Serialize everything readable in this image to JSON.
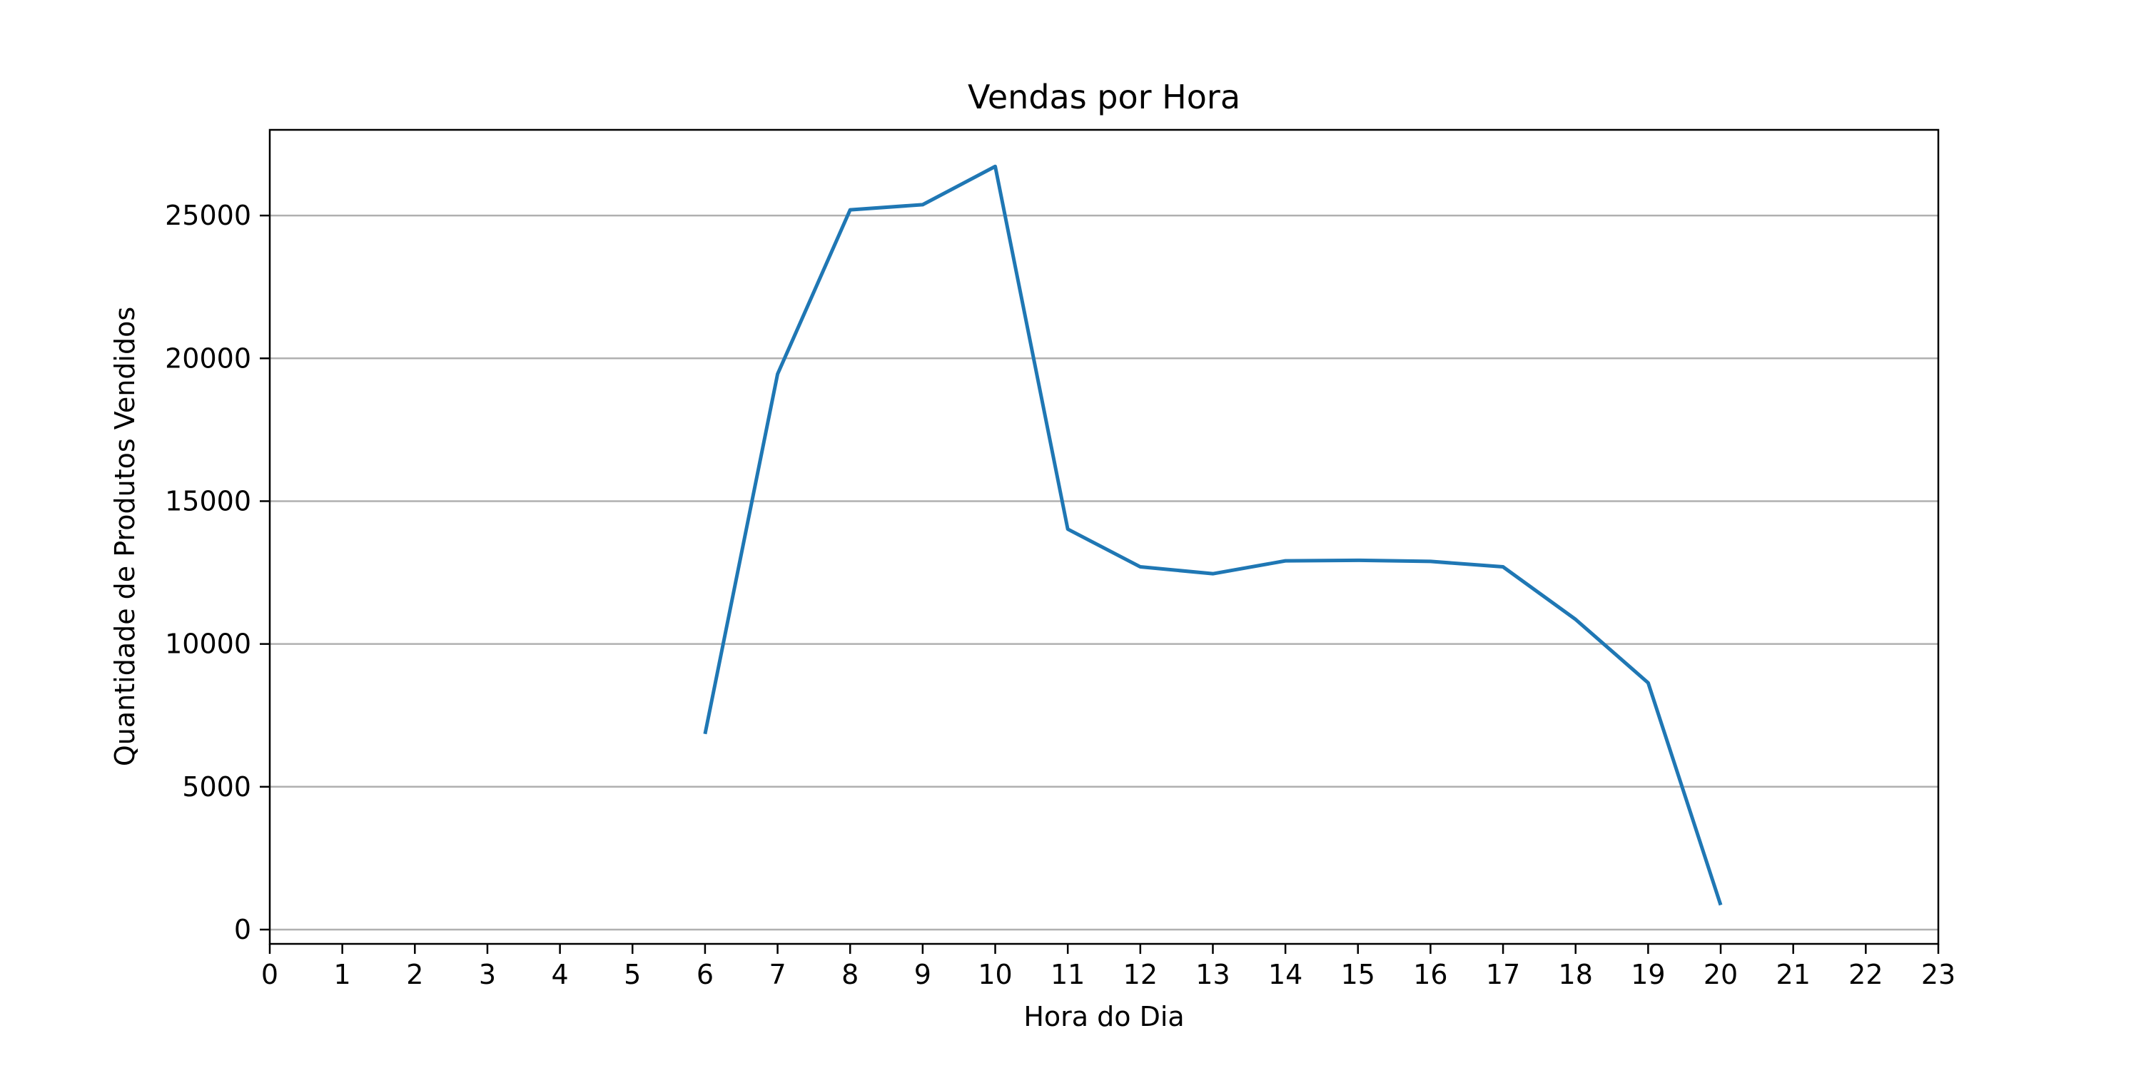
{
  "chart_data": {
    "type": "line",
    "title": "Vendas por Hora",
    "xlabel": "Hora do Dia",
    "ylabel": "Quantidade de Produtos Vendidos",
    "xlim": [
      0,
      23
    ],
    "ylim": [
      -500,
      28000
    ],
    "x_ticks": [
      0,
      1,
      2,
      3,
      4,
      5,
      6,
      7,
      8,
      9,
      10,
      11,
      12,
      13,
      14,
      15,
      16,
      17,
      18,
      19,
      20,
      21,
      22,
      23
    ],
    "y_ticks": [
      0,
      5000,
      10000,
      15000,
      20000,
      25000
    ],
    "grid": "horizontal",
    "legend": "none",
    "series": [
      {
        "color": "#1f77b4",
        "x": [
          6,
          7,
          8,
          9,
          10,
          11,
          12,
          13,
          14,
          15,
          16,
          17,
          18,
          19,
          20
        ],
        "y": [
          6850,
          19450,
          25200,
          25380,
          26720,
          14020,
          12700,
          12460,
          12910,
          12930,
          12890,
          12700,
          10860,
          8640,
          860
        ]
      }
    ]
  }
}
